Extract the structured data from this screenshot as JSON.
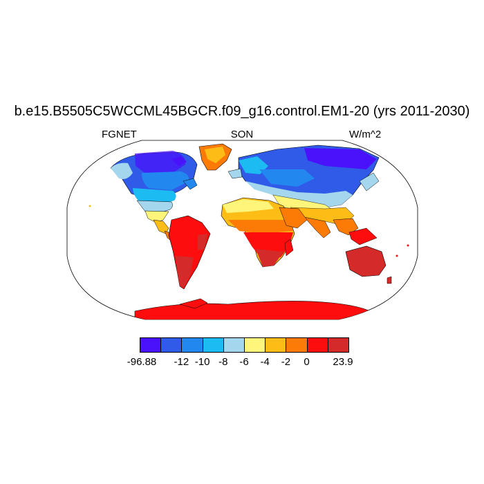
{
  "title": "b.e15.B5505C5WCCML45BGCR.f09_g16.control.EM1-20 (yrs 2011-2030)",
  "subtitle_left": "FGNET",
  "subtitle_center": "SON",
  "subtitle_right": "W/m^2",
  "colorbar": {
    "colors": [
      "#4a12fb",
      "#2f5be8",
      "#2288f0",
      "#1cbcf2",
      "#a4d6ee",
      "#fff57a",
      "#fdbd16",
      "#fc7a06",
      "#fd0d0d",
      "#d42a2a"
    ],
    "labels": [
      "-96.88",
      "-12",
      "-10",
      "-8",
      "-6",
      "-4",
      "-2",
      "0",
      "23.9"
    ]
  },
  "map": {
    "projection": "Robinson",
    "ocean_color": "#ffffff",
    "coastline_color": "#000000"
  }
}
